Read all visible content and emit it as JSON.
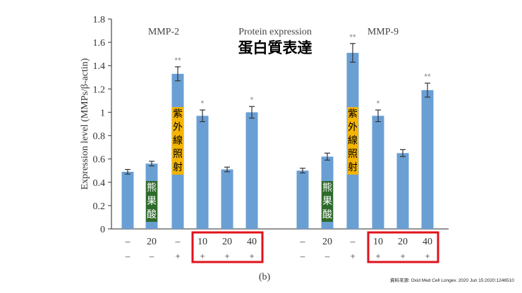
{
  "chart_data": {
    "type": "bar",
    "title": "Protein expression",
    "title_zh": "蛋白質表達",
    "ylabel": "Expression level (MMPs/β-actin)",
    "ylim": [
      0,
      1.8
    ],
    "yticks": [
      0,
      0.2,
      0.4,
      0.6,
      0.8,
      1,
      1.2,
      1.4,
      1.6,
      1.8
    ],
    "ytick_labels": [
      "0",
      "0.2",
      "0.4",
      "0.6",
      "0.8",
      "1",
      "1.2",
      "1.4",
      "1.6",
      "1.8"
    ],
    "panel_label": "(b)",
    "groups": [
      {
        "name": "MMP-2",
        "row1": [
          "–",
          "20",
          "–",
          "10",
          "20",
          "40"
        ],
        "row2": [
          "–",
          "–",
          "+",
          "+",
          "+",
          "+"
        ],
        "values": [
          0.49,
          0.56,
          1.33,
          0.97,
          0.51,
          1.0
        ],
        "errors": [
          0.02,
          0.02,
          0.06,
          0.05,
          0.02,
          0.05
        ],
        "significance": [
          "",
          "",
          "**",
          "*",
          "",
          "*"
        ]
      },
      {
        "name": "MMP-9",
        "row1": [
          "–",
          "20",
          "–",
          "10",
          "20",
          "40"
        ],
        "row2": [
          "–",
          "–",
          "+",
          "+",
          "+",
          "+"
        ],
        "values": [
          0.5,
          0.62,
          1.51,
          0.97,
          0.65,
          1.19
        ],
        "errors": [
          0.02,
          0.03,
          0.08,
          0.05,
          0.03,
          0.06
        ],
        "significance": [
          "",
          "",
          "**",
          "*",
          "",
          "**"
        ]
      }
    ],
    "annotations": {
      "ursolic_acid": "熊果酸",
      "uv_irradiation": "紫外線照射"
    },
    "colors": {
      "bar": "#6a9fd4",
      "highlight_box": "#e0121b",
      "green_label": "#2e6b2a",
      "yellow_label": "#f5b400"
    }
  },
  "source": "資料來源: Oxid Med Cell Longev. 2020 Jun 15:2020:1246510"
}
